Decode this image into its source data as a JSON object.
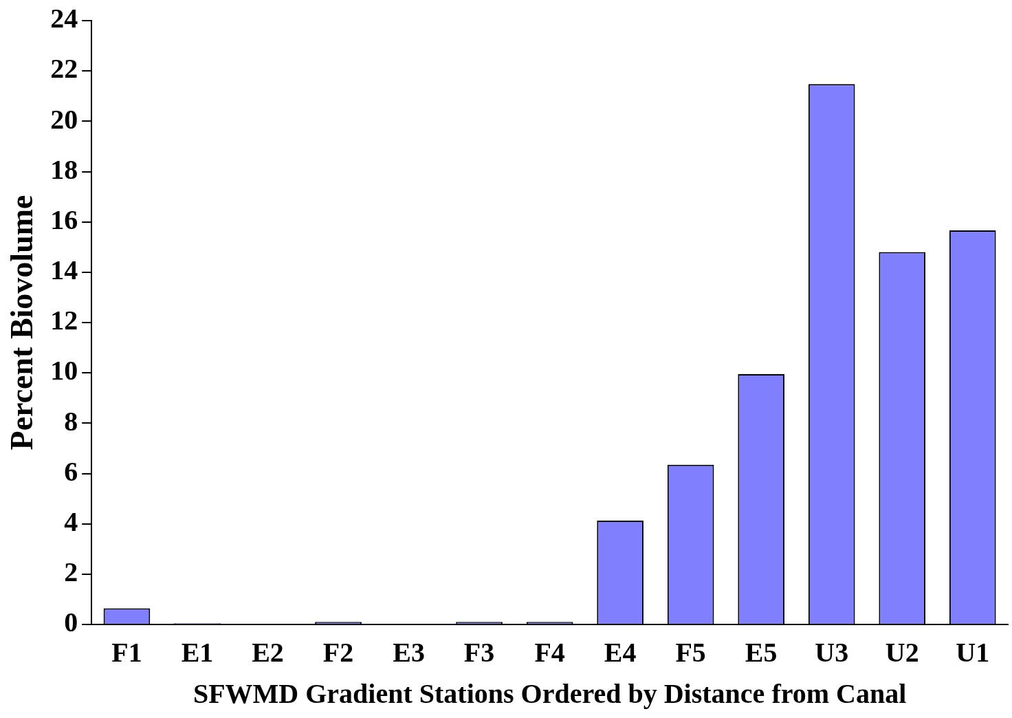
{
  "chart_data": {
    "type": "bar",
    "xlabel": "SFWMD Gradient Stations Ordered by Distance from Canal",
    "ylabel": "Percent Biovolume",
    "categories": [
      "F1",
      "E1",
      "E2",
      "F2",
      "E3",
      "F3",
      "F4",
      "E4",
      "F5",
      "E5",
      "U3",
      "U2",
      "U1"
    ],
    "values": [
      0.64,
      0.05,
      0,
      0.1,
      0,
      0.1,
      0.1,
      4.13,
      6.35,
      9.95,
      21.48,
      14.8,
      15.66
    ],
    "color": "#8080ff",
    "ylim": [
      0,
      24
    ],
    "yticks": [
      0,
      2,
      4,
      6,
      8,
      10,
      12,
      14,
      16,
      18,
      20,
      22,
      24
    ],
    "grid": false,
    "legend": false
  }
}
